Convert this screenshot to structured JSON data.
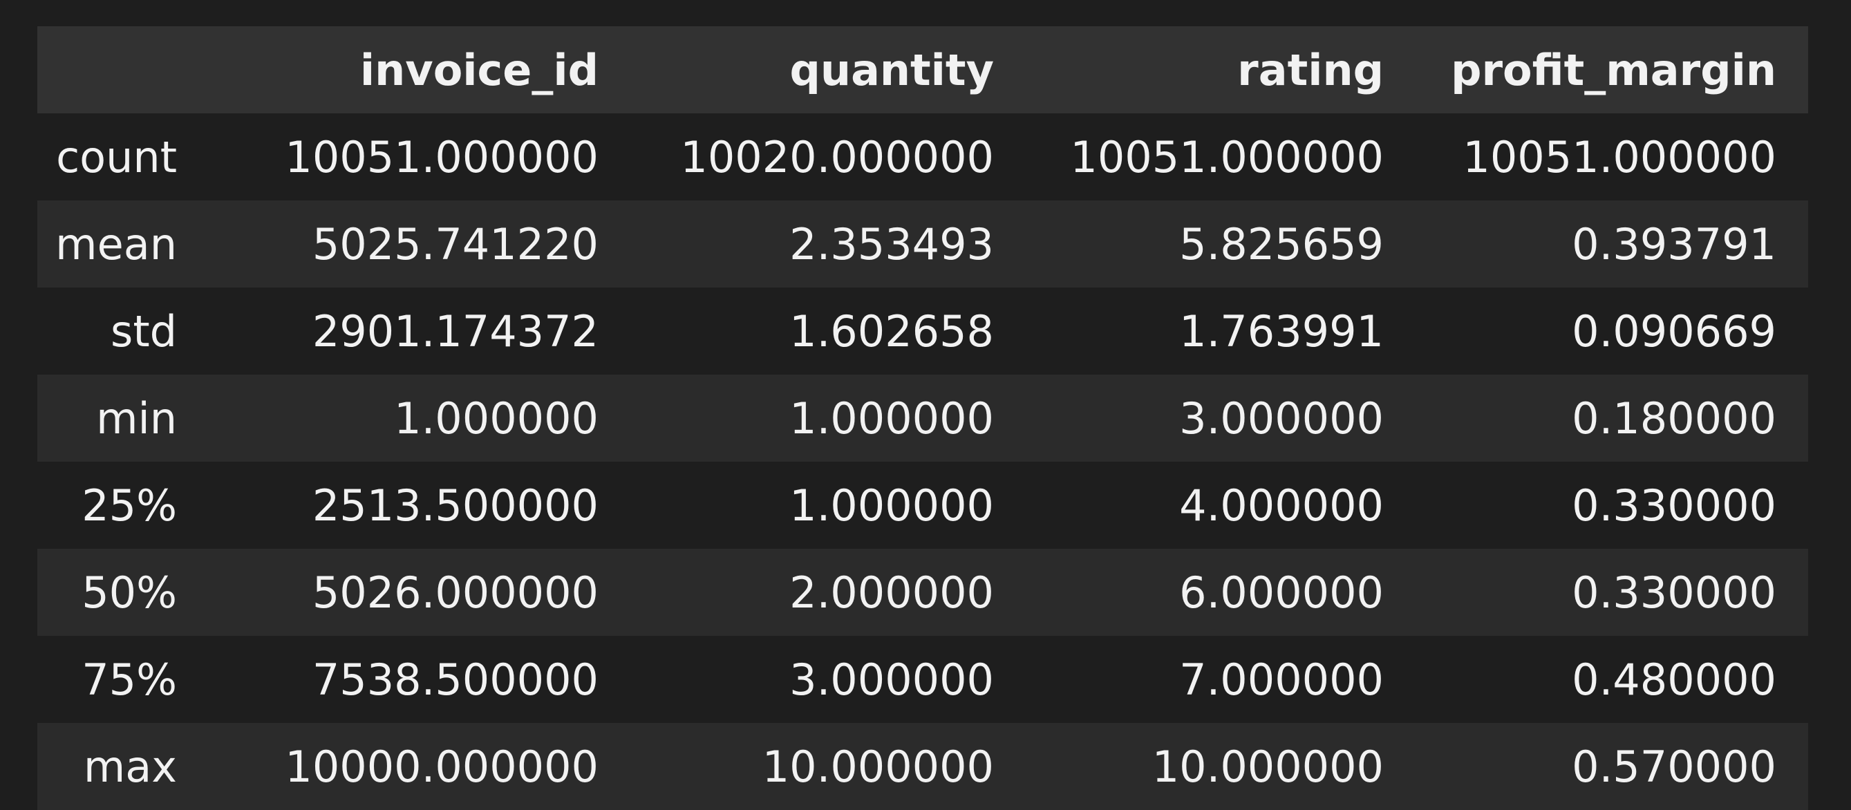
{
  "table": {
    "columns": [
      "",
      "invoice_id",
      "quantity",
      "rating",
      "profit_margin"
    ],
    "rows": [
      {
        "index": "count",
        "values": [
          "10051.000000",
          "10020.000000",
          "10051.000000",
          "10051.000000"
        ]
      },
      {
        "index": "mean",
        "values": [
          "5025.741220",
          "2.353493",
          "5.825659",
          "0.393791"
        ]
      },
      {
        "index": "std",
        "values": [
          "2901.174372",
          "1.602658",
          "1.763991",
          "0.090669"
        ]
      },
      {
        "index": "min",
        "values": [
          "1.000000",
          "1.000000",
          "3.000000",
          "0.180000"
        ]
      },
      {
        "index": "25%",
        "values": [
          "2513.500000",
          "1.000000",
          "4.000000",
          "0.330000"
        ]
      },
      {
        "index": "50%",
        "values": [
          "5026.000000",
          "2.000000",
          "6.000000",
          "0.330000"
        ]
      },
      {
        "index": "75%",
        "values": [
          "7538.500000",
          "3.000000",
          "7.000000",
          "0.480000"
        ]
      },
      {
        "index": "max",
        "values": [
          "10000.000000",
          "10.000000",
          "10.000000",
          "0.570000"
        ]
      }
    ]
  },
  "colors": {
    "background": "#1e1e1e",
    "header_bg": "#323232",
    "stripe_bg": "#2b2b2b",
    "text": "#f2f2f2"
  }
}
